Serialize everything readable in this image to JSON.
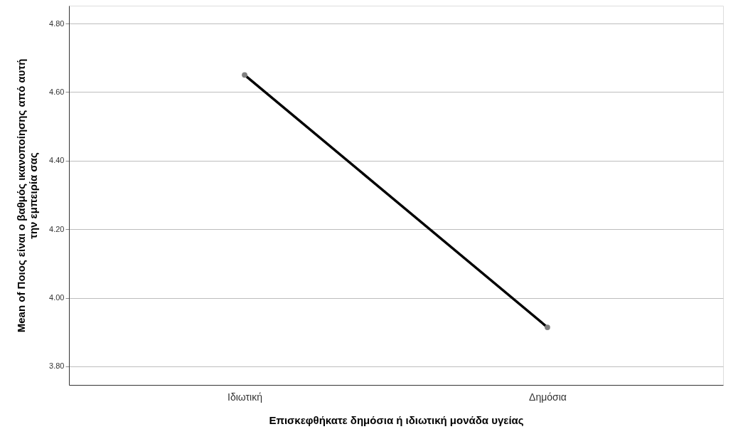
{
  "chart_data": {
    "type": "line",
    "xlabel": "Επισκεφθήκατε δημόσια ή ιδιωτική μονάδα υγείας",
    "ylabel": "Mean of Ποιος είναι ο βαθμός ικανοποίησης από αυτή\nτην εμπειρία σας",
    "categories": [
      "Ιδιωτική",
      "Δημόσια"
    ],
    "series": [
      {
        "color": "#000000",
        "values": [
          4.65,
          3.914
        ]
      }
    ],
    "ylim": [
      3.746,
      4.852
    ],
    "yticks": [
      {
        "value": 3.8,
        "label": "3.80"
      },
      {
        "value": 4.0,
        "label": "4.00"
      },
      {
        "value": 4.2,
        "label": "4.20"
      },
      {
        "value": 4.4,
        "label": "4.40"
      },
      {
        "value": 4.6,
        "label": "4.60"
      },
      {
        "value": 4.8,
        "label": "4.80"
      }
    ],
    "grid": "y",
    "marker": "circle",
    "line_style": "solid",
    "legend": false
  }
}
